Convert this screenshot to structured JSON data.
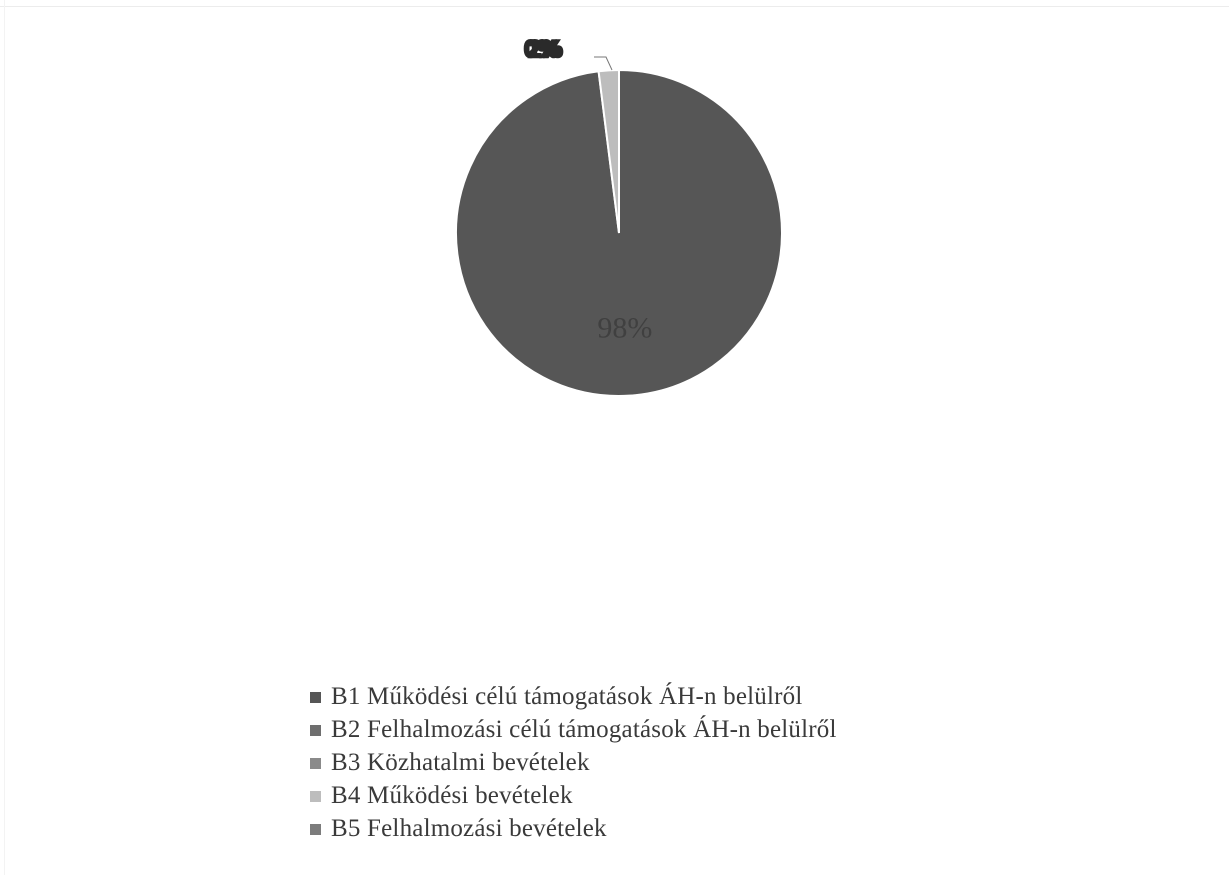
{
  "chart_data": {
    "type": "pie",
    "title": "",
    "start_angle_deg": 0,
    "direction": "clockwise",
    "slices": [
      {
        "label": "B1 Működési célú támogatások ÁH-n belülről",
        "value": 98,
        "color": "#565656",
        "data_label": "98%"
      },
      {
        "label": "B2 Felhalmozási célú támogatások ÁH-n belülről",
        "value": 0,
        "color": "#6e6e6e",
        "data_label": ""
      },
      {
        "label": "B3 Közhatalmi bevételek",
        "value": 0,
        "color": "#8a8a8a",
        "data_label": ""
      },
      {
        "label": "B4 Működési bevételek",
        "value": 2,
        "color": "#bdbdbd",
        "data_label": ""
      },
      {
        "label": "B5 Felhalmozási bevételek",
        "value": 0,
        "color": "#7c7c7c",
        "data_label": ""
      }
    ],
    "overlapping_labels": [
      "0%",
      "2%"
    ],
    "legend": {
      "position": "bottom",
      "items": [
        "B1 Működési célú támogatások ÁH-n belülről",
        "B2 Felhalmozási célú támogatások ÁH-n belülről",
        "B3 Közhatalmi bevételek",
        "B4 Működési bevételek",
        "B5 Felhalmozási bevételek"
      ]
    }
  }
}
